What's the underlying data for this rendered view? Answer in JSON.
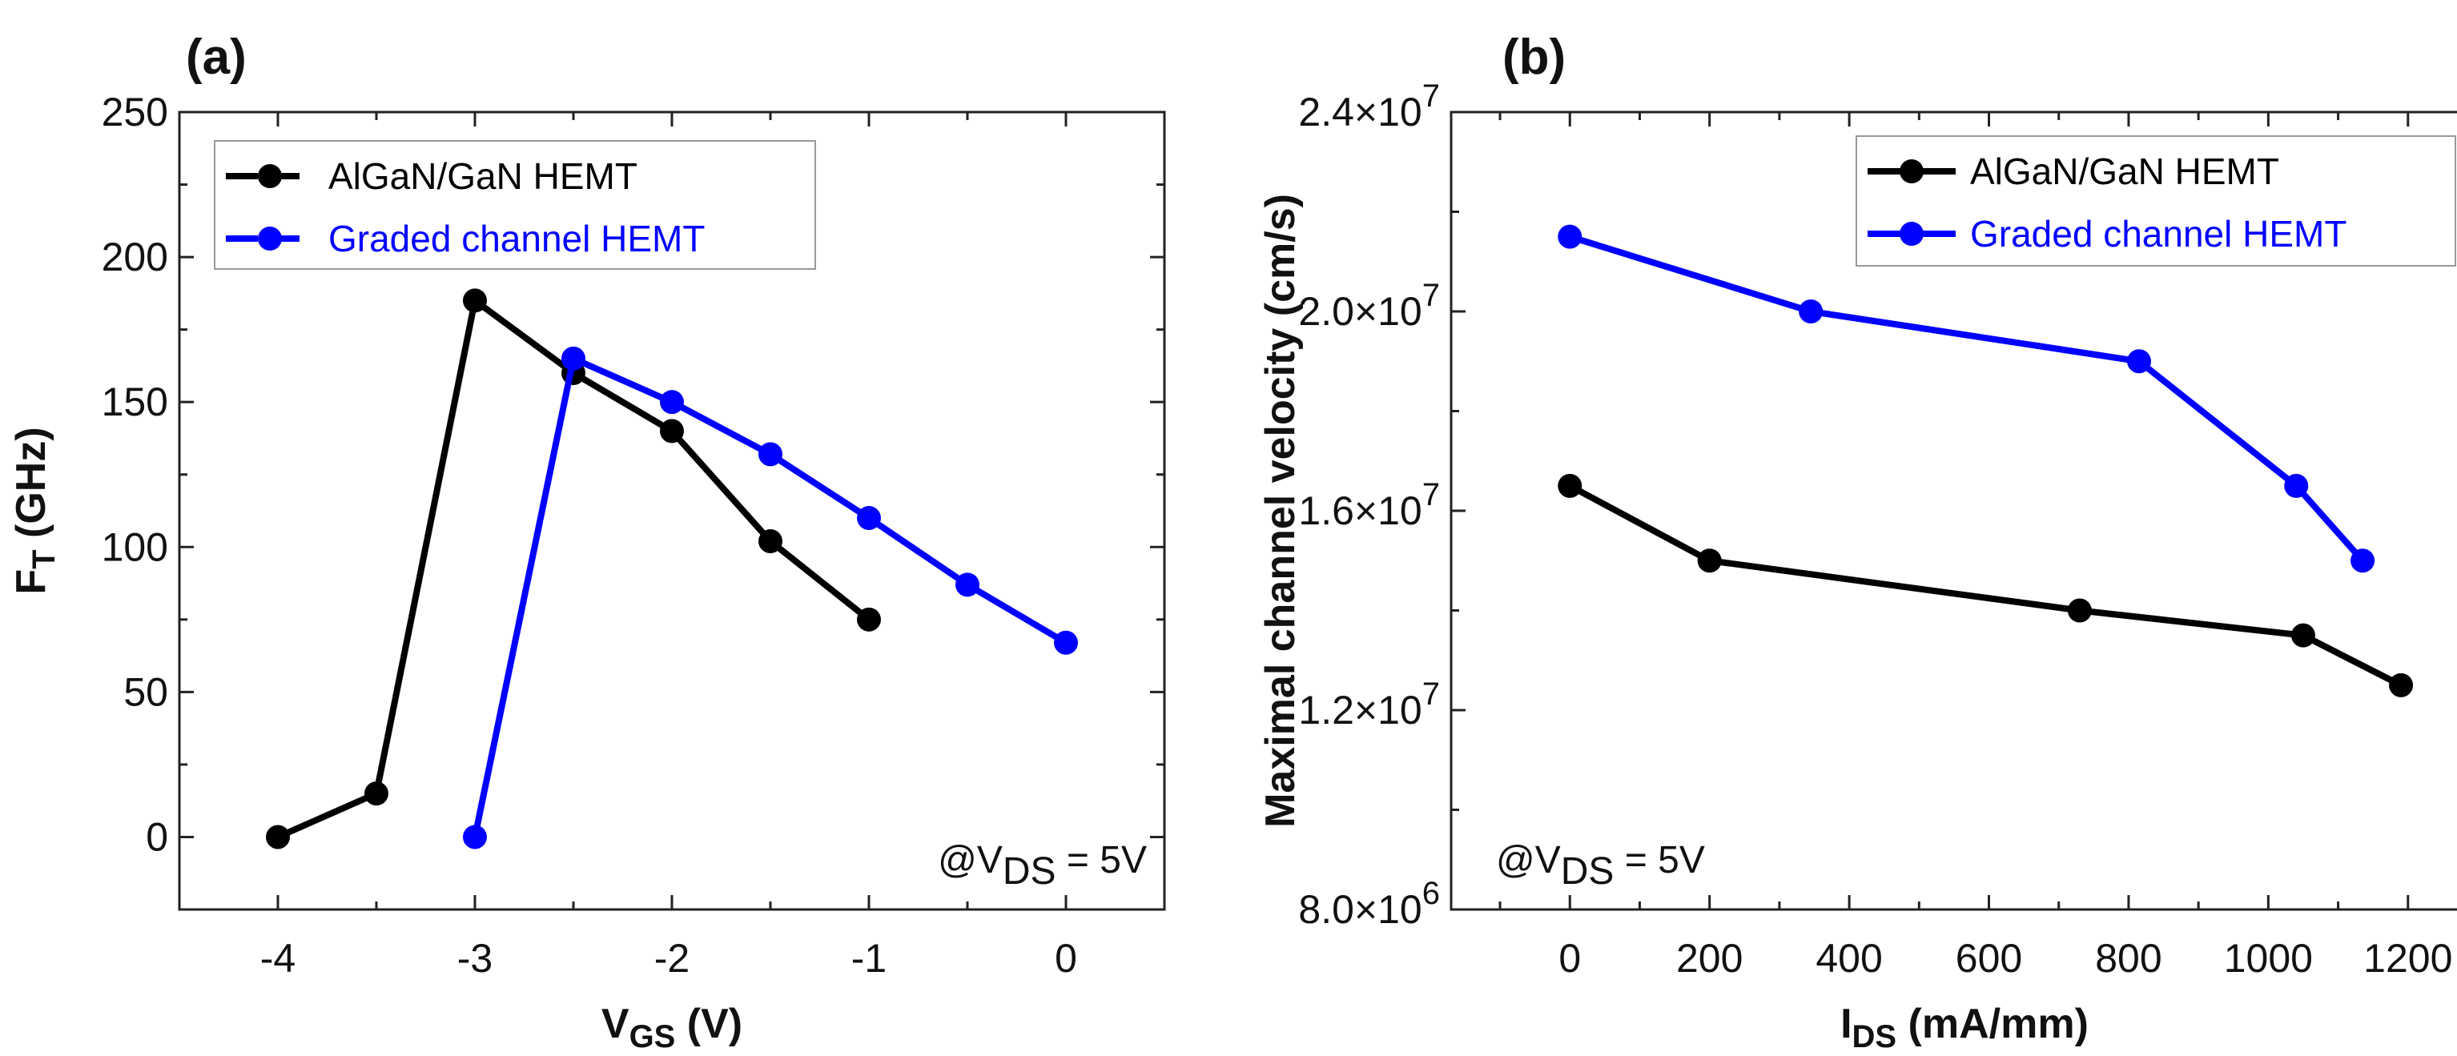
{
  "colors": {
    "series1": "#000000",
    "series2": "#0000ff"
  },
  "chart_data": [
    {
      "type": "line",
      "panel_label": "(a)",
      "xlabel_main": "V",
      "xlabel_sub": "GS",
      "xlabel_unit": " (V)",
      "ylabel_main": "F",
      "ylabel_sub": "T",
      "ylabel_unit": " (GHz)",
      "xlim": [
        -4.5,
        0.5
      ],
      "ylim": [
        -25,
        250
      ],
      "xticks": [
        -4,
        -3,
        -2,
        -1,
        0
      ],
      "xtick_labels": [
        "-4",
        "-3",
        "-2",
        "-1",
        "0"
      ],
      "yticks": [
        0,
        50,
        100,
        150,
        200,
        250
      ],
      "ytick_labels": [
        "0",
        "50",
        "100",
        "150",
        "200",
        "250"
      ],
      "legend_position": "top-left",
      "annotation": {
        "main": "@V",
        "sub": "DS",
        "rest": " = 5V"
      },
      "series": [
        {
          "name": "AlGaN/GaN HEMT",
          "color": "#000000",
          "x": [
            -4,
            -3.5,
            -3,
            -2.5,
            -2,
            -1.5,
            -1
          ],
          "y": [
            0,
            15,
            185,
            160,
            140,
            102,
            75
          ]
        },
        {
          "name": "Graded channel HEMT",
          "color": "#0000ff",
          "x": [
            -3,
            -2.5,
            -2,
            -1.5,
            -1,
            -0.5,
            0
          ],
          "y": [
            0,
            165,
            150,
            132,
            110,
            87,
            67
          ]
        }
      ]
    },
    {
      "type": "line",
      "panel_label": "(b)",
      "xlabel_main": "I",
      "xlabel_sub": "DS",
      "xlabel_unit": " (mA/mm)",
      "ylabel_main": "Maximal channel velocity (cm/s)",
      "ylabel_sub": "",
      "ylabel_unit": "",
      "xlim": [
        -170,
        1300
      ],
      "ylim": [
        8000000,
        24000000
      ],
      "xticks": [
        0,
        200,
        400,
        600,
        800,
        1000,
        1200
      ],
      "xtick_labels": [
        "0",
        "200",
        "400",
        "600",
        "800",
        "1000",
        "1200"
      ],
      "yticks": [
        8000000,
        12000000,
        16000000,
        20000000,
        24000000
      ],
      "ytick_labels": [
        [
          "8.0×10",
          "6"
        ],
        [
          "1.2×10",
          "7"
        ],
        [
          "1.6×10",
          "7"
        ],
        [
          "2.0×10",
          "7"
        ],
        [
          "2.4×10",
          "7"
        ]
      ],
      "legend_position": "top-right",
      "annotation": {
        "main": "@V",
        "sub": "DS",
        "rest": " = 5V"
      },
      "series": [
        {
          "name": "AlGaN/GaN HEMT",
          "color": "#000000",
          "x": [
            0,
            200,
            730,
            1050,
            1190
          ],
          "y": [
            16500000,
            15000000,
            14000000,
            13500000,
            12500000
          ]
        },
        {
          "name": "Graded channel HEMT",
          "color": "#0000ff",
          "x": [
            0,
            345,
            815,
            1040,
            1135
          ],
          "y": [
            21500000,
            20000000,
            19000000,
            16500000,
            15000000
          ]
        }
      ]
    }
  ]
}
